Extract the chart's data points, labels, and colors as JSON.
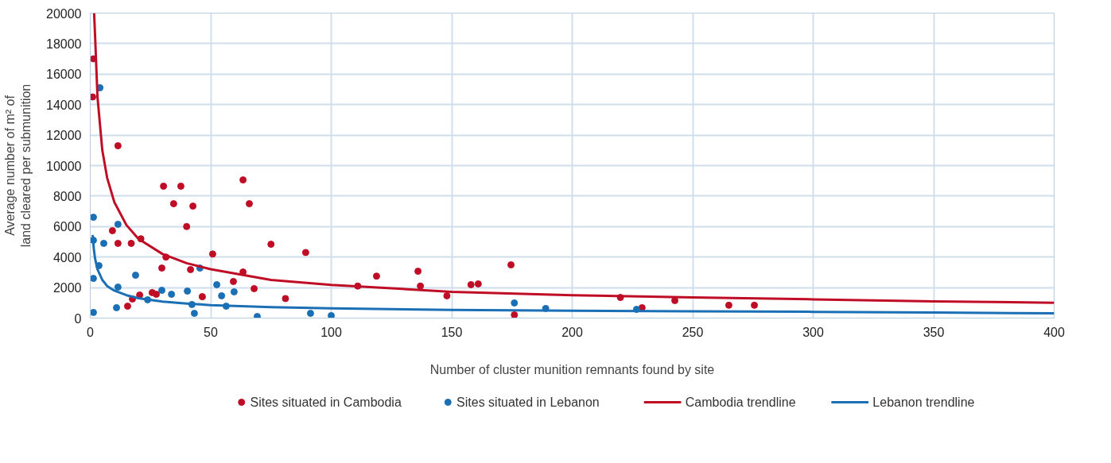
{
  "chart_data": {
    "type": "scatter",
    "xlabel": "Number of cluster munition remnants found by site",
    "ylabel": "Average number of m² of land cleared per submunition",
    "xlim": [
      0,
      400
    ],
    "xticks": [
      0,
      50,
      100,
      150,
      200,
      250,
      300,
      350,
      400
    ],
    "ylim": [
      0,
      20000
    ],
    "yticks": [
      0,
      2000,
      4000,
      6000,
      8000,
      10000,
      12000,
      14000,
      16000,
      18000,
      20000
    ],
    "grid": true,
    "legend": "bottom",
    "series": [
      {
        "name": "Sites situated in Cambodia",
        "marker": "circle",
        "color": "#c00d26",
        "x": [
          1.3,
          1,
          11.5,
          30.4,
          37.6,
          63.4,
          34.6,
          42.6,
          66,
          40,
          9.2,
          11.5,
          17,
          21,
          75,
          89.4,
          50.8,
          31.4,
          29.7,
          41.6,
          63.4,
          136,
          174.6,
          118.8,
          137,
          111,
          158,
          161,
          68,
          81,
          20.5,
          25.7,
          27.4,
          46.5,
          17.5,
          15.5,
          148,
          176,
          220,
          229,
          242.6,
          265,
          275.6,
          59.4
        ],
        "values": [
          17000,
          14500,
          11300,
          8650,
          8650,
          9060,
          7500,
          7340,
          7500,
          6000,
          5730,
          4900,
          4900,
          5200,
          4840,
          4300,
          4200,
          4000,
          3280,
          3180,
          3020,
          3070,
          3490,
          2750,
          2100,
          2100,
          2190,
          2240,
          1930,
          1280,
          1510,
          1670,
          1560,
          1400,
          1250,
          780,
          1460,
          210,
          1350,
          680,
          1150,
          840,
          840,
          2400
        ]
      },
      {
        "name": "Sites situated in Lebanon",
        "marker": "circle",
        "color": "#1a6fb5",
        "x": [
          1.3,
          4,
          11.5,
          1.3,
          5.6,
          3.6,
          1.3,
          11.5,
          18.8,
          1.3,
          10.9,
          23.8,
          29.7,
          33.7,
          40.3,
          42.2,
          43.2,
          45.5,
          52.5,
          54.5,
          56.4,
          59.7,
          69.3,
          91.4,
          100,
          176,
          189,
          226.7
        ],
        "values": [
          6610,
          15100,
          6150,
          5100,
          4900,
          3440,
          2600,
          2030,
          2810,
          370,
          680,
          1200,
          1820,
          1560,
          1770,
          890,
          310,
          3280,
          2190,
          1460,
          780,
          1720,
          100,
          310,
          160,
          990,
          630,
          570
        ]
      },
      {
        "name": "Cambodia trendline",
        "type": "line",
        "color": "#c00d26",
        "x": [
          1.6,
          2,
          3,
          5,
          7,
          10,
          15,
          20,
          30,
          40,
          50,
          75,
          100,
          150,
          200,
          250,
          300,
          350,
          400
        ],
        "values": [
          20000,
          18500,
          14500,
          11000,
          9200,
          7600,
          6100,
          5200,
          4200,
          3600,
          3200,
          2500,
          2180,
          1720,
          1500,
          1350,
          1230,
          1100,
          1000
        ]
      },
      {
        "name": "Lebanon trendline",
        "type": "line",
        "color": "#1a6fb5",
        "x": [
          1,
          1.5,
          2,
          3,
          5,
          7,
          10,
          15,
          20,
          30,
          40,
          50,
          75,
          100,
          150,
          200,
          250,
          300,
          350,
          400
        ],
        "values": [
          5450,
          4500,
          3900,
          3200,
          2500,
          2100,
          1800,
          1500,
          1300,
          1080,
          950,
          850,
          720,
          640,
          530,
          480,
          440,
          410,
          370,
          310
        ]
      }
    ]
  }
}
